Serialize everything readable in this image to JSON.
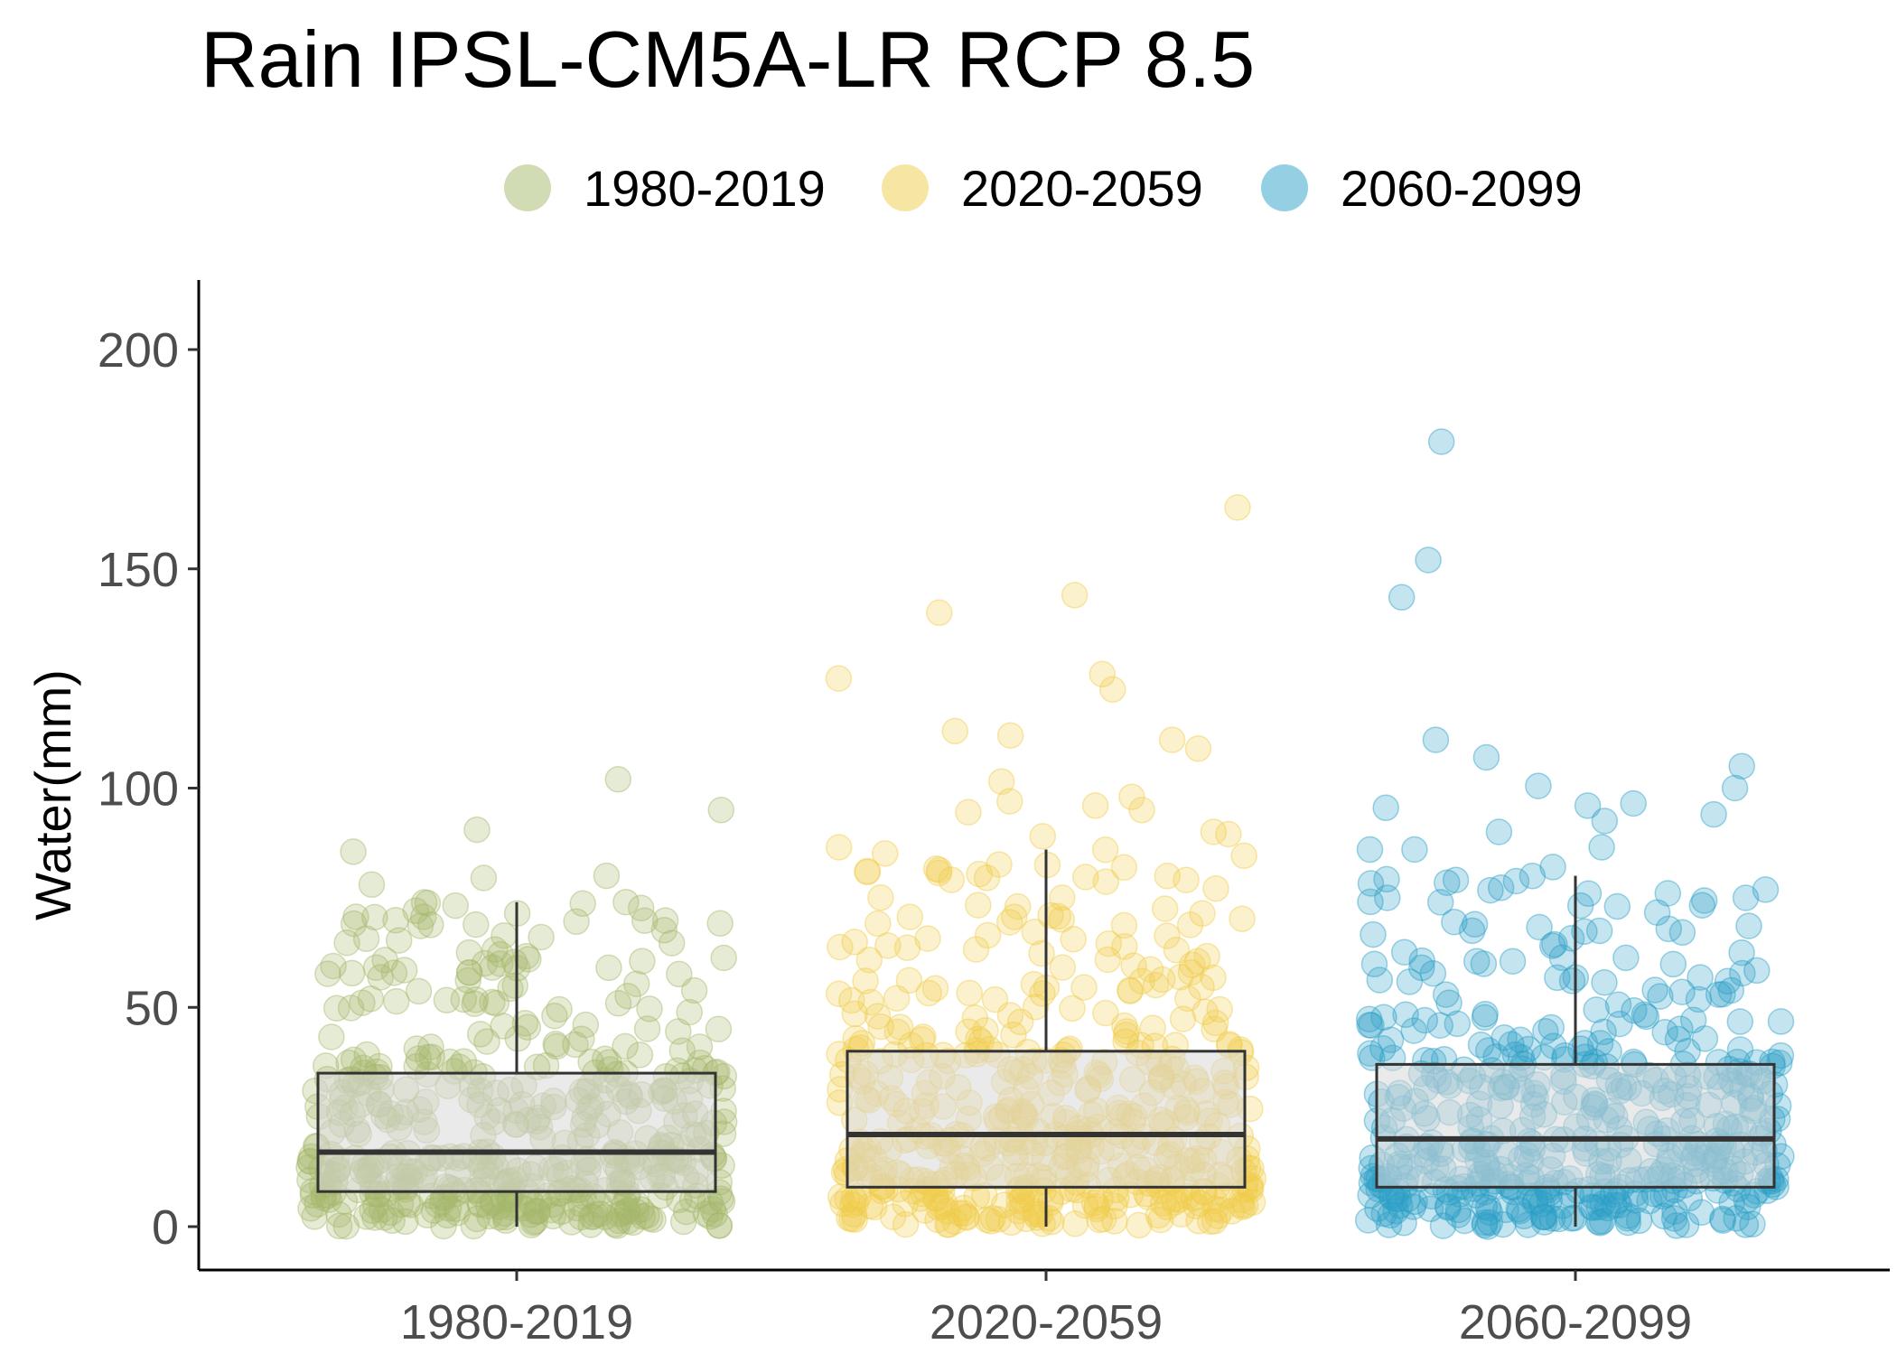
{
  "chart_data": {
    "type": "box+jitter",
    "title": "Rain IPSL-CM5A-LR RCP 8.5",
    "xlabel": "",
    "ylabel": "Water(mm)",
    "ylim": [
      -10,
      215
    ],
    "yticks": [
      0,
      50,
      100,
      150,
      200
    ],
    "legend_position": "top",
    "categories": [
      "1980-2019",
      "2020-2059",
      "2060-2099"
    ],
    "series": [
      {
        "name": "1980-2019",
        "color": "#a4b86a",
        "box": {
          "min": 0,
          "q1": 8,
          "median": 17,
          "q3": 35,
          "max": 74
        },
        "outliers": [
          102,
          95,
          90.5,
          85.5,
          80,
          79.5,
          78
        ]
      },
      {
        "name": "2020-2059",
        "color": "#efcb4a",
        "box": {
          "min": 0,
          "q1": 9,
          "median": 21,
          "q3": 40,
          "max": 86
        },
        "outliers": [
          164,
          144,
          140,
          126,
          125,
          122.5,
          113,
          112,
          111,
          109,
          101.5,
          98,
          97,
          96,
          95,
          94.5,
          90,
          89.5,
          89,
          86.5
        ]
      },
      {
        "name": "2060-2099",
        "color": "#2a9fc7",
        "box": {
          "min": 0,
          "q1": 9,
          "median": 20,
          "q3": 37,
          "max": 80
        },
        "outliers": [
          179,
          152,
          143.5,
          111,
          107,
          105,
          100.5,
          100,
          96.5,
          96,
          95.5,
          94,
          92.5,
          90,
          86.5,
          86,
          86,
          82
        ]
      }
    ]
  }
}
